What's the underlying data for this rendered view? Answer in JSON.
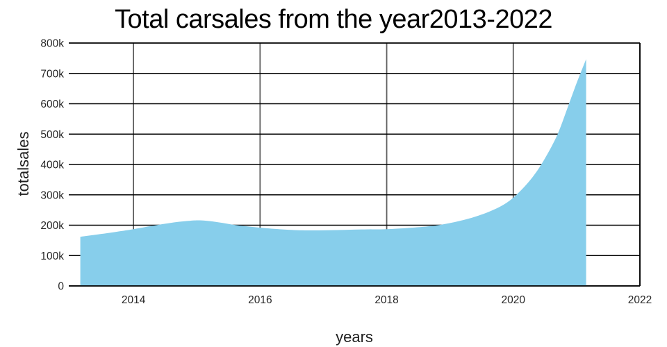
{
  "chart_data": {
    "type": "area",
    "title": "Total carsales from the year2013-2022",
    "xlabel": "years",
    "ylabel": "totalsales",
    "xlim": [
      2013,
      2022
    ],
    "ylim": [
      0,
      800000
    ],
    "grid": true,
    "legend_position": "none",
    "x_ticks": [
      2014,
      2016,
      2018,
      2020,
      2022
    ],
    "x_tick_labels": [
      "2014",
      "2016",
      "2018",
      "2020",
      "2022"
    ],
    "y_ticks": [
      0,
      100000,
      200000,
      300000,
      400000,
      500000,
      600000,
      700000,
      800000
    ],
    "y_tick_labels": [
      "0",
      "100k",
      "200k",
      "300k",
      "400k",
      "500k",
      "600k",
      "700k",
      "800k"
    ],
    "colors": {
      "area_fill": "#87CEEB",
      "h_gridline": "#000000",
      "v_gridline": "#5f5f5f",
      "axis_line": "#000000",
      "tick_text": "#262626"
    },
    "series": [
      {
        "name": "totalsales",
        "points": [
          [
            2013.16,
            162000
          ],
          [
            2013.45,
            170000
          ],
          [
            2013.75,
            179000
          ],
          [
            2014.0,
            187000
          ],
          [
            2014.3,
            198000
          ],
          [
            2014.6,
            208000
          ],
          [
            2014.85,
            214000
          ],
          [
            2015.05,
            216000
          ],
          [
            2015.3,
            211000
          ],
          [
            2015.6,
            201000
          ],
          [
            2015.85,
            195000
          ],
          [
            2016.1,
            190000
          ],
          [
            2016.45,
            185000
          ],
          [
            2016.8,
            183000
          ],
          [
            2017.2,
            184000
          ],
          [
            2017.6,
            186000
          ],
          [
            2018.0,
            187000
          ],
          [
            2018.35,
            191000
          ],
          [
            2018.7,
            197000
          ],
          [
            2019.0,
            207000
          ],
          [
            2019.3,
            222000
          ],
          [
            2019.6,
            243000
          ],
          [
            2019.85,
            268000
          ],
          [
            2020.05,
            300000
          ],
          [
            2020.3,
            357000
          ],
          [
            2020.5,
            420000
          ],
          [
            2020.7,
            500000
          ],
          [
            2020.88,
            600000
          ],
          [
            2021.0,
            668000
          ],
          [
            2021.15,
            747000
          ]
        ]
      }
    ]
  }
}
